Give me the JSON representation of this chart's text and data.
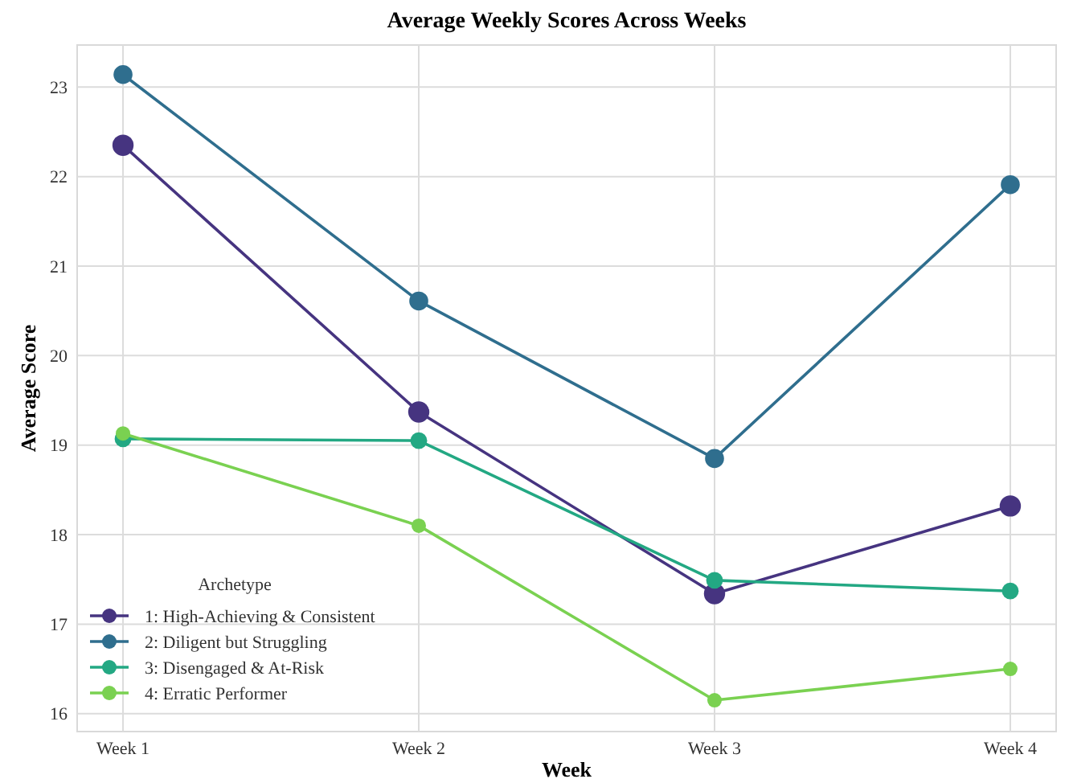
{
  "chart_data": {
    "type": "line",
    "title": "Average Weekly Scores Across Weeks",
    "xlabel": "Week",
    "ylabel": "Average Score",
    "legend_title": "Archetype",
    "categories": [
      "Week 1",
      "Week 2",
      "Week 3",
      "Week 4"
    ],
    "series": [
      {
        "name": "1: High-Achieving & Consistent",
        "color": "#463480",
        "values": [
          22.35,
          19.37,
          17.34,
          18.32
        ]
      },
      {
        "name": "2: Diligent but Struggling",
        "color": "#2f6e8e",
        "values": [
          23.14,
          20.61,
          18.85,
          21.91
        ]
      },
      {
        "name": "3: Disengaged & At-Risk",
        "color": "#23a883",
        "values": [
          19.07,
          19.05,
          17.49,
          17.37
        ]
      },
      {
        "name": "4: Erratic Performer",
        "color": "#7ad151",
        "values": [
          19.13,
          18.1,
          16.15,
          16.5
        ]
      }
    ],
    "ylim": [
      15.8,
      23.47
    ],
    "yticks": [
      16,
      17,
      18,
      19,
      20,
      21,
      22,
      23
    ],
    "grid": true,
    "legend": "bottom left",
    "marker": "circle",
    "line_style": "solid"
  }
}
